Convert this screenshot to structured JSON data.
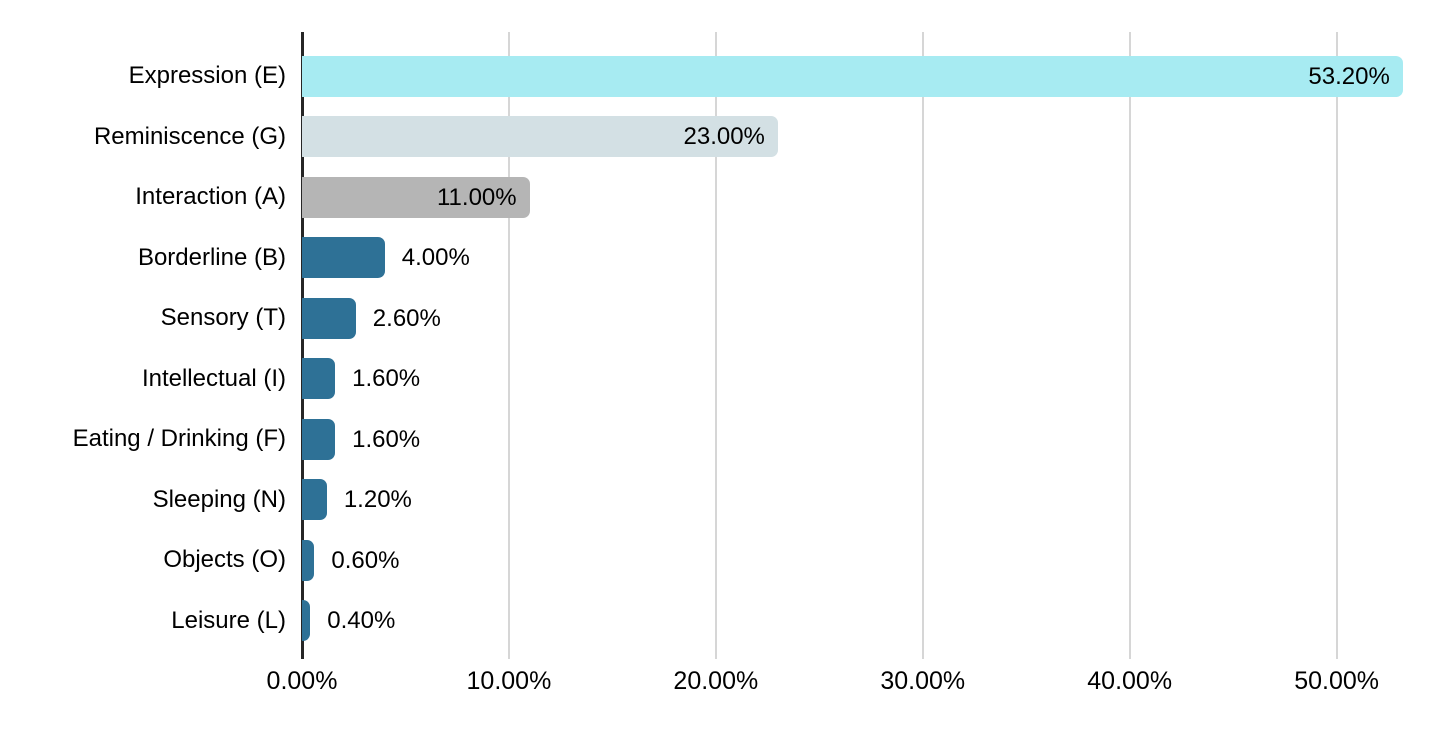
{
  "chart_data": {
    "type": "bar",
    "orientation": "horizontal",
    "title": "",
    "xlabel": "",
    "ylabel": "",
    "categories": [
      "Expression (E)",
      "Reminiscence (G)",
      "Interaction (A)",
      "Borderline (B)",
      "Sensory (T)",
      "Intellectual (I)",
      "Eating / Drinking (F)",
      "Sleeping (N)",
      "Objects (O)",
      "Leisure (L)"
    ],
    "values": [
      53.2,
      23.0,
      11.0,
      4.0,
      2.6,
      1.6,
      1.6,
      1.2,
      0.6,
      0.4
    ],
    "value_labels": [
      "53.20%",
      "23.00%",
      "11.00%",
      "4.00%",
      "2.60%",
      "1.60%",
      "1.60%",
      "1.20%",
      "0.60%",
      "0.40%"
    ],
    "label_positions": [
      "inside",
      "inside",
      "inside",
      "outside",
      "outside",
      "outside",
      "outside",
      "outside",
      "outside",
      "outside"
    ],
    "bar_colors": [
      "#a7ebf2",
      "#d3e0e4",
      "#b5b5b5",
      "#2e7196",
      "#2e7196",
      "#2e7196",
      "#2e7196",
      "#2e7196",
      "#2e7196",
      "#2e7196"
    ],
    "x_ticks": [
      {
        "value": 0,
        "label": "0.00%"
      },
      {
        "value": 10,
        "label": "10.00%"
      },
      {
        "value": 20,
        "label": "20.00%"
      },
      {
        "value": 30,
        "label": "30.00%"
      },
      {
        "value": 40,
        "label": "40.00%"
      },
      {
        "value": 50,
        "label": "50.00%"
      }
    ],
    "xlim": [
      0,
      54.9
    ],
    "grid": "vertical",
    "legend": "none",
    "colors": {
      "background": "#ffffff",
      "gridline": "#d6d6d6",
      "axis_line": "#262626",
      "text": "#000000"
    }
  }
}
